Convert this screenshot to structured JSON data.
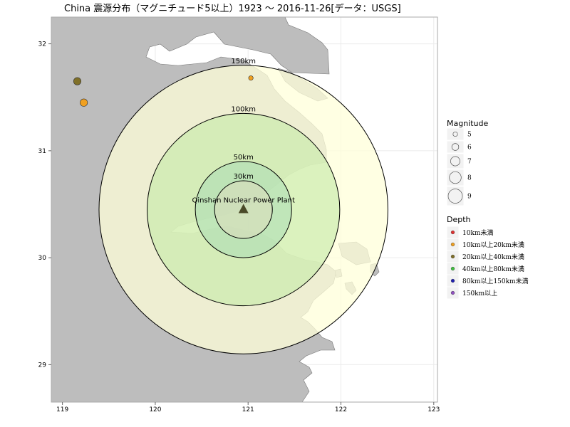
{
  "title": "China 震源分布（マグニチュード5以上）1923 〜 2016-11-26[データ：USGS]",
  "axes": {
    "x_ticks": [
      119,
      120,
      121,
      122,
      123
    ],
    "y_ticks": [
      32,
      31,
      30,
      29
    ],
    "xlim": [
      118.88,
      123.04
    ],
    "ylim": [
      28.65,
      32.25
    ]
  },
  "plant": {
    "name": "Qinshan Nuclear Power Plant",
    "lon": 120.95,
    "lat": 30.45
  },
  "rings": [
    {
      "label": "150km",
      "radius_km": 150,
      "fill": "#ffffd9",
      "opacity": 0.75
    },
    {
      "label": "100km",
      "radius_km": 100,
      "fill": "#c8ebaa",
      "opacity": 0.65
    },
    {
      "label": "50km",
      "radius_km": 50,
      "fill": "#aadcb4",
      "opacity": 0.55
    },
    {
      "label": "30km",
      "radius_km": 30,
      "fill": "#dcdcbe",
      "opacity": 0.55
    }
  ],
  "quakes": [
    {
      "lon": 119.16,
      "lat": 31.65,
      "mag": 6.2,
      "depth_class": "20km以上40km未満"
    },
    {
      "lon": 119.23,
      "lat": 31.45,
      "mag": 6.2,
      "depth_class": "10km以上20km未満"
    },
    {
      "lon": 121.03,
      "lat": 31.68,
      "mag": 5.0,
      "depth_class": "10km以上20km未満"
    }
  ],
  "legend_magnitude": {
    "title": "Magnitude",
    "items": [
      {
        "label": "5",
        "mag": 5
      },
      {
        "label": "6",
        "mag": 6
      },
      {
        "label": "7",
        "mag": 7
      },
      {
        "label": "8",
        "mag": 8
      },
      {
        "label": "9",
        "mag": 9
      }
    ]
  },
  "legend_depth": {
    "title": "Depth",
    "items": [
      {
        "label": "10km未満",
        "color": "#e03030"
      },
      {
        "label": "10km以上20km未満",
        "color": "#f0a020"
      },
      {
        "label": "20km以上40km未満",
        "color": "#807028"
      },
      {
        "label": "40km以上80km未満",
        "color": "#40c040"
      },
      {
        "label": "80km以上150km未満",
        "color": "#2020b0"
      },
      {
        "label": "150km以上",
        "color": "#9050c0"
      }
    ]
  },
  "colors": {
    "land": "#bdbdbd",
    "sea": "#ffffff",
    "frame": "#aaaaaa",
    "ring_stroke": "#000000",
    "plant_marker": "#4a4a28"
  }
}
